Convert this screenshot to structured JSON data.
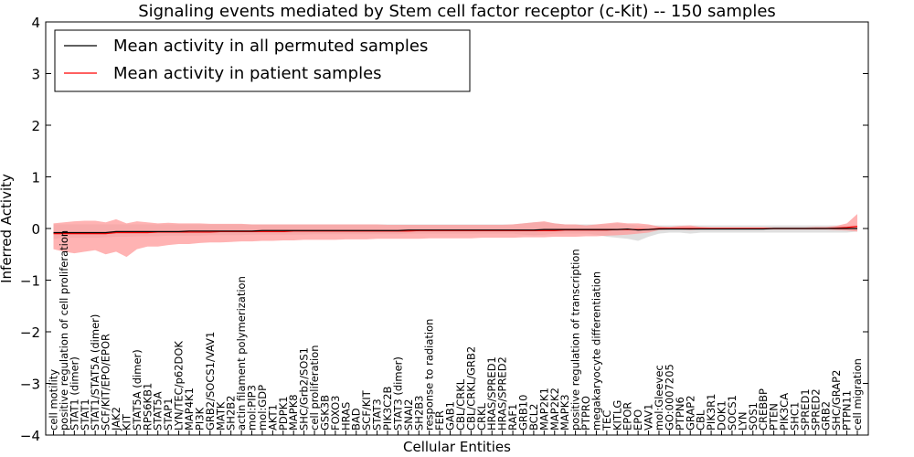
{
  "chart_data": {
    "type": "line",
    "title": "Signaling events mediated by Stem cell factor receptor (c-Kit) -- 150 samples",
    "xlabel": "Cellular Entities",
    "ylabel": "Inferred Activity",
    "ylim": [
      -4,
      4
    ],
    "yticks": [
      "4",
      "3",
      "2",
      "1",
      "0",
      "−1",
      "−2",
      "−3",
      "−4"
    ],
    "legend": {
      "position": "top-left",
      "entries": [
        {
          "label": "Mean activity in all permuted samples",
          "color": "#000000"
        },
        {
          "label": "Mean activity in patient samples",
          "color": "#ff0000"
        }
      ]
    },
    "colors": {
      "permuted": "#000000",
      "patient": "#ff0000",
      "patient_band": "#ff9999",
      "permuted_band": "#d9d9d9"
    },
    "categories": [
      "cell motility",
      "positive regulation of cell proliferation",
      "STAT1 (dimer)",
      "STAT1",
      "STAT1/STAT5A (dimer)",
      "SCF/KIT/EPO/EPOR",
      "JAK2",
      "KIT",
      "STAT5A (dimer)",
      "RPS6KB1",
      "STAT5A",
      "STAP1",
      "LYN/TEC/p62DOK",
      "MAP4K1",
      "PI3K",
      "GRB2/SOCS1/VAV1",
      "MATK",
      "SH2B2",
      "actin filament polymerization",
      "mol:PIP3",
      "mol:GDP",
      "AKT1",
      "PDPK1",
      "MAPK8",
      "SHC/Grb2/SOS1",
      "cell proliferation",
      "GSK3B",
      "FOXO3",
      "HRAS",
      "BAD",
      "SCF/KIT",
      "STAT3",
      "PIK3C2B",
      "STAT3 (dimer)",
      "SNAI2",
      "SH2B3",
      "response to radiation",
      "FER",
      "GAB1",
      "CBL/CRKL",
      "CBL/CRKL/GRB2",
      "CRKL",
      "HRAS/SPRED1",
      "HRAS/SPRED2",
      "RAF1",
      "GRB10",
      "BCL2",
      "MAP2K1",
      "MAP2K2",
      "MAPK3",
      "positive regulation of transcription",
      "PTPRO",
      "megakaryocyte differentiation",
      "TEC",
      "KITLG",
      "EPOR",
      "EPO",
      "VAV1",
      "mol:Gleevec",
      "GO:0007205",
      "PTPN6",
      "GRAP2",
      "CBL",
      "PIK3R1",
      "DOK1",
      "SOCS1",
      "LYN",
      "SOS1",
      "CREBBP",
      "PTEN",
      "PIK3CA",
      "SHC1",
      "SPRED1",
      "SPRED2",
      "GRB2",
      "SHC/GRAP2",
      "PTPN11",
      "cell migration"
    ],
    "series": [
      {
        "name": "Mean activity in patient samples",
        "color": "#ff0000",
        "values": [
          -0.1,
          -0.1,
          -0.1,
          -0.1,
          -0.1,
          -0.1,
          -0.08,
          -0.08,
          -0.08,
          -0.08,
          -0.07,
          -0.07,
          -0.07,
          -0.07,
          -0.07,
          -0.07,
          -0.06,
          -0.06,
          -0.06,
          -0.06,
          -0.06,
          -0.06,
          -0.06,
          -0.05,
          -0.05,
          -0.05,
          -0.05,
          -0.05,
          -0.05,
          -0.05,
          -0.05,
          -0.05,
          -0.05,
          -0.05,
          -0.05,
          -0.04,
          -0.04,
          -0.04,
          -0.04,
          -0.04,
          -0.04,
          -0.04,
          -0.04,
          -0.04,
          -0.04,
          -0.04,
          -0.04,
          -0.04,
          -0.04,
          -0.03,
          -0.03,
          -0.03,
          -0.03,
          -0.03,
          -0.02,
          -0.02,
          -0.02,
          -0.02,
          0.0,
          0.0,
          0.0,
          0.0,
          0.0,
          0.0,
          0.0,
          0.0,
          0.0,
          0.0,
          0.0,
          0.0,
          0.0,
          0.0,
          0.0,
          0.0,
          0.0,
          0.01,
          0.02,
          0.04
        ],
        "lower": [
          -0.4,
          -0.45,
          -0.48,
          -0.45,
          -0.42,
          -0.5,
          -0.45,
          -0.55,
          -0.4,
          -0.35,
          -0.35,
          -0.32,
          -0.3,
          -0.3,
          -0.28,
          -0.27,
          -0.27,
          -0.26,
          -0.25,
          -0.25,
          -0.24,
          -0.24,
          -0.23,
          -0.23,
          -0.22,
          -0.22,
          -0.22,
          -0.22,
          -0.21,
          -0.21,
          -0.21,
          -0.2,
          -0.2,
          -0.2,
          -0.2,
          -0.2,
          -0.19,
          -0.19,
          -0.19,
          -0.19,
          -0.19,
          -0.18,
          -0.18,
          -0.18,
          -0.18,
          -0.17,
          -0.17,
          -0.17,
          -0.16,
          -0.16,
          -0.16,
          -0.15,
          -0.15,
          -0.14,
          -0.13,
          -0.12,
          -0.1,
          -0.08,
          -0.03,
          -0.02,
          -0.02,
          -0.03,
          -0.02,
          -0.02,
          -0.02,
          -0.02,
          -0.02,
          -0.02,
          -0.02,
          -0.02,
          -0.02,
          -0.02,
          -0.02,
          -0.02,
          -0.02,
          -0.03,
          -0.04,
          -0.06
        ],
        "upper": [
          0.1,
          0.12,
          0.14,
          0.15,
          0.15,
          0.12,
          0.18,
          0.1,
          0.14,
          0.12,
          0.1,
          0.11,
          0.1,
          0.1,
          0.1,
          0.09,
          0.09,
          0.09,
          0.09,
          0.08,
          0.08,
          0.08,
          0.08,
          0.08,
          0.08,
          0.08,
          0.08,
          0.08,
          0.08,
          0.08,
          0.08,
          0.08,
          0.07,
          0.07,
          0.07,
          0.07,
          0.07,
          0.07,
          0.07,
          0.07,
          0.07,
          0.07,
          0.07,
          0.07,
          0.08,
          0.1,
          0.12,
          0.14,
          0.1,
          0.08,
          0.08,
          0.06,
          0.08,
          0.1,
          0.12,
          0.1,
          0.1,
          0.08,
          0.04,
          0.03,
          0.05,
          0.06,
          0.03,
          0.02,
          0.02,
          0.02,
          0.02,
          0.02,
          0.02,
          0.02,
          0.02,
          0.02,
          0.02,
          0.03,
          0.03,
          0.05,
          0.1,
          0.28
        ]
      },
      {
        "name": "Mean activity in all permuted samples",
        "color": "#000000",
        "values": [
          -0.08,
          -0.08,
          -0.08,
          -0.08,
          -0.08,
          -0.08,
          -0.06,
          -0.06,
          -0.06,
          -0.06,
          -0.06,
          -0.06,
          -0.06,
          -0.05,
          -0.05,
          -0.05,
          -0.05,
          -0.05,
          -0.05,
          -0.05,
          -0.04,
          -0.04,
          -0.04,
          -0.04,
          -0.04,
          -0.04,
          -0.04,
          -0.04,
          -0.04,
          -0.04,
          -0.04,
          -0.04,
          -0.04,
          -0.04,
          -0.03,
          -0.03,
          -0.03,
          -0.03,
          -0.03,
          -0.03,
          -0.03,
          -0.03,
          -0.03,
          -0.03,
          -0.03,
          -0.03,
          -0.03,
          -0.02,
          -0.02,
          -0.02,
          -0.02,
          -0.02,
          -0.02,
          -0.02,
          -0.02,
          -0.01,
          -0.03,
          -0.02,
          -0.01,
          -0.01,
          -0.01,
          -0.01,
          -0.01,
          -0.01,
          -0.01,
          -0.01,
          -0.01,
          -0.01,
          -0.01,
          0.0,
          0.0,
          0.0,
          0.0,
          0.0,
          0.0,
          0.0,
          0.0,
          0.0
        ],
        "lower": [
          -0.2,
          -0.18,
          -0.18,
          -0.18,
          -0.18,
          -0.17,
          -0.16,
          -0.16,
          -0.15,
          -0.15,
          -0.15,
          -0.14,
          -0.14,
          -0.14,
          -0.14,
          -0.13,
          -0.13,
          -0.13,
          -0.13,
          -0.12,
          -0.12,
          -0.12,
          -0.12,
          -0.12,
          -0.12,
          -0.11,
          -0.11,
          -0.11,
          -0.11,
          -0.11,
          -0.11,
          -0.11,
          -0.11,
          -0.11,
          -0.1,
          -0.1,
          -0.1,
          -0.1,
          -0.1,
          -0.1,
          -0.1,
          -0.1,
          -0.1,
          -0.1,
          -0.1,
          -0.12,
          -0.13,
          -0.12,
          -0.1,
          -0.1,
          -0.1,
          -0.1,
          -0.12,
          -0.16,
          -0.18,
          -0.2,
          -0.24,
          -0.16,
          -0.1,
          -0.08,
          -0.08,
          -0.1,
          -0.08,
          -0.08,
          -0.08,
          -0.08,
          -0.08,
          -0.08,
          -0.08,
          -0.08,
          -0.08,
          -0.08,
          -0.08,
          -0.08,
          -0.08,
          -0.08,
          -0.08,
          -0.06
        ],
        "upper": [
          0.08,
          0.08,
          0.08,
          0.08,
          0.08,
          0.08,
          0.08,
          0.08,
          0.08,
          0.08,
          0.08,
          0.08,
          0.08,
          0.08,
          0.08,
          0.08,
          0.08,
          0.08,
          0.08,
          0.08,
          0.08,
          0.08,
          0.08,
          0.08,
          0.08,
          0.08,
          0.08,
          0.08,
          0.08,
          0.08,
          0.08,
          0.08,
          0.08,
          0.08,
          0.08,
          0.08,
          0.08,
          0.08,
          0.08,
          0.08,
          0.08,
          0.08,
          0.08,
          0.08,
          0.08,
          0.1,
          0.12,
          0.12,
          0.1,
          0.08,
          0.08,
          0.08,
          0.08,
          0.08,
          0.1,
          0.08,
          0.06,
          0.06,
          0.06,
          0.06,
          0.06,
          0.06,
          0.06,
          0.06,
          0.06,
          0.06,
          0.06,
          0.06,
          0.06,
          0.06,
          0.06,
          0.06,
          0.06,
          0.06,
          0.06,
          0.06,
          0.06,
          0.06
        ]
      }
    ]
  }
}
